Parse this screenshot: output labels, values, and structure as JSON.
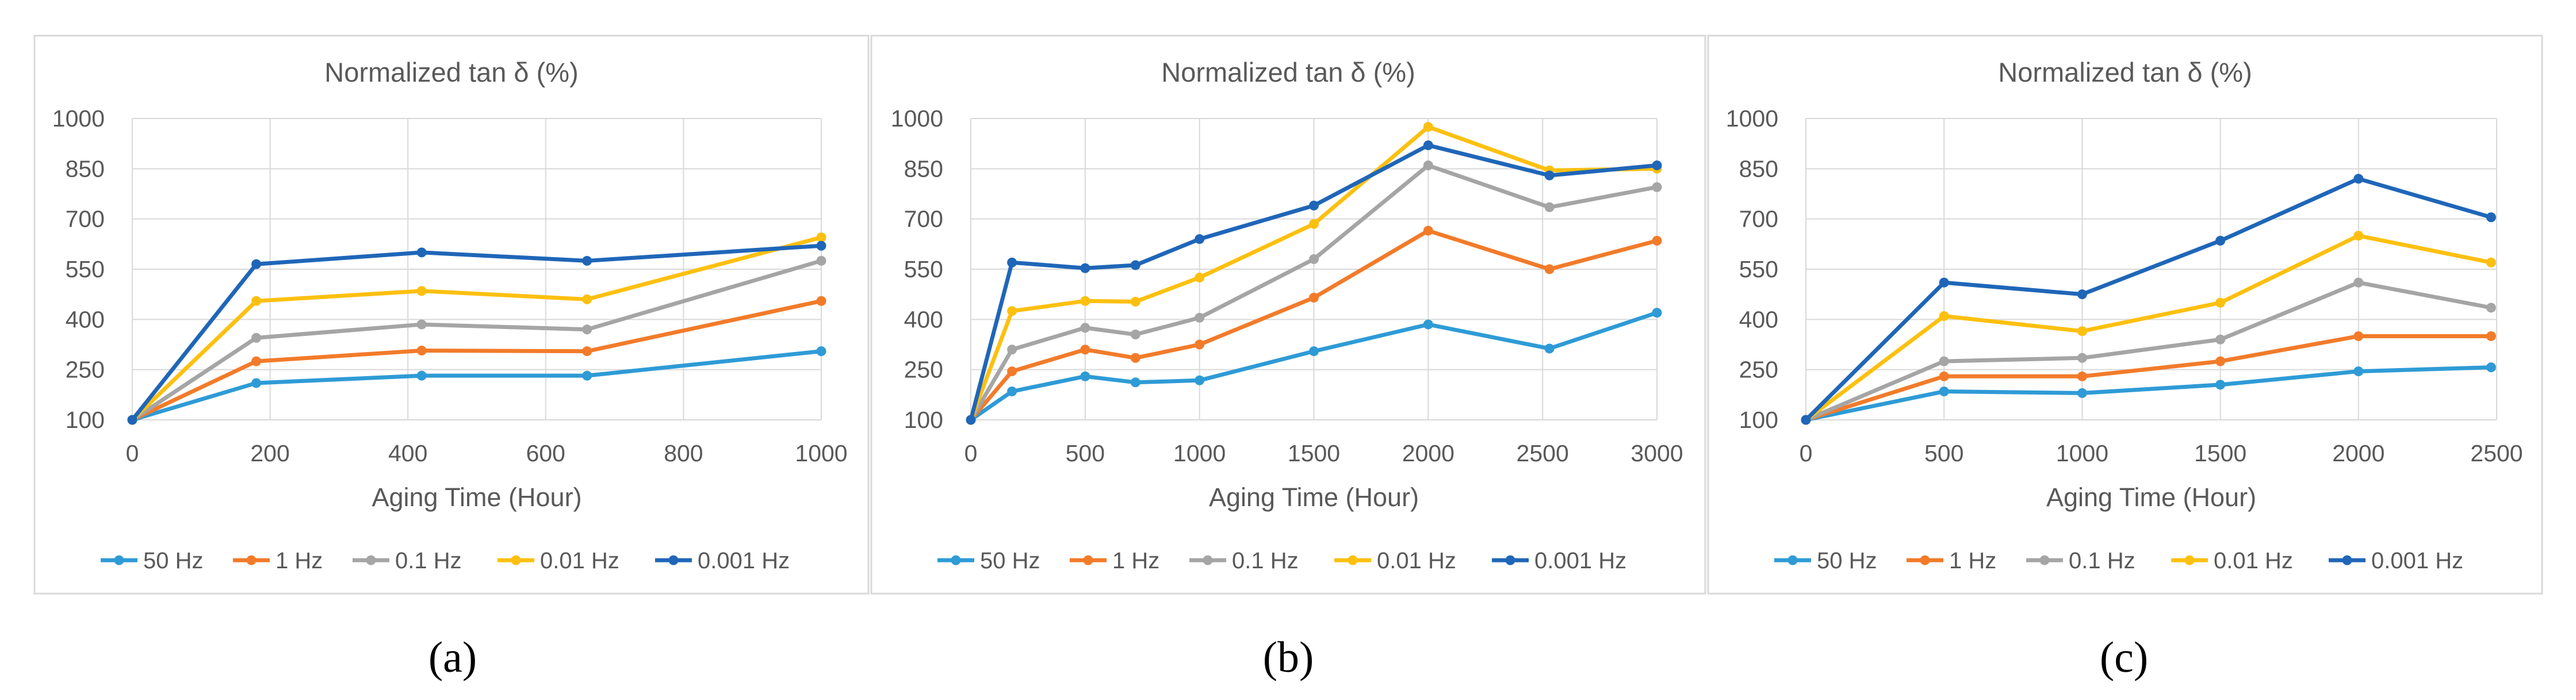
{
  "colors": {
    "series": [
      "#2e9bd6",
      "#f27b2a",
      "#a5a5a5",
      "#fdc010",
      "#1f66b8"
    ],
    "grid": "#d9d9d9",
    "text": "#595959",
    "frame": "#d9d9d9"
  },
  "panel_labels": [
    "(a)",
    "(b)",
    "(c)"
  ],
  "chart_data": [
    {
      "type": "line",
      "title": "Normalized tan δ (%)",
      "xlabel": "Aging Time (Hour)",
      "ylabel": "",
      "xlim": [
        0,
        1000
      ],
      "ylim": [
        100,
        1000
      ],
      "xticks": [
        "0",
        "200",
        "400",
        "600",
        "800",
        "1000"
      ],
      "yticks": [
        "100",
        "250",
        "400",
        "550",
        "700",
        "850",
        "1000"
      ],
      "grid": true,
      "legend": "bottom",
      "x": [
        0,
        180,
        420,
        660,
        1000
      ],
      "series": [
        {
          "name": "50 Hz",
          "values": [
            100,
            210,
            232,
            232,
            305
          ]
        },
        {
          "name": "1 Hz",
          "values": [
            100,
            275,
            307,
            305,
            455
          ]
        },
        {
          "name": "0.1 Hz",
          "values": [
            100,
            345,
            385,
            370,
            575
          ]
        },
        {
          "name": "0.01 Hz",
          "values": [
            100,
            455,
            485,
            460,
            645
          ]
        },
        {
          "name": "0.001 Hz",
          "values": [
            100,
            565,
            600,
            575,
            620
          ]
        }
      ]
    },
    {
      "type": "line",
      "title": "Normalized tan δ (%)",
      "xlabel": "Aging Time (Hour)",
      "ylabel": "",
      "xlim": [
        0,
        3000
      ],
      "ylim": [
        100,
        1000
      ],
      "xticks": [
        "0",
        "500",
        "1000",
        "1500",
        "2000",
        "2500",
        "3000"
      ],
      "yticks": [
        "100",
        "250",
        "400",
        "550",
        "700",
        "850",
        "1000"
      ],
      "grid": true,
      "legend": "bottom",
      "x": [
        0,
        180,
        500,
        720,
        1000,
        1500,
        2000,
        2530,
        3000
      ],
      "series": [
        {
          "name": "50 Hz",
          "values": [
            100,
            185,
            230,
            212,
            218,
            305,
            385,
            313,
            420
          ]
        },
        {
          "name": "1 Hz",
          "values": [
            100,
            245,
            310,
            285,
            325,
            465,
            665,
            550,
            635
          ]
        },
        {
          "name": "0.1 Hz",
          "values": [
            100,
            310,
            375,
            355,
            405,
            580,
            860,
            735,
            795
          ]
        },
        {
          "name": "0.01 Hz",
          "values": [
            100,
            425,
            455,
            453,
            525,
            685,
            975,
            845,
            850
          ]
        },
        {
          "name": "0.001 Hz",
          "values": [
            100,
            570,
            553,
            562,
            640,
            740,
            920,
            830,
            860
          ]
        }
      ]
    },
    {
      "type": "line",
      "title": "Normalized tan δ (%)",
      "xlabel": "Aging Time (Hour)",
      "ylabel": "",
      "xlim": [
        0,
        2500
      ],
      "ylim": [
        100,
        1000
      ],
      "xticks": [
        "0",
        "500",
        "1000",
        "1500",
        "2000",
        "2500"
      ],
      "yticks": [
        "100",
        "250",
        "400",
        "550",
        "700",
        "850",
        "1000"
      ],
      "grid": true,
      "legend": "bottom",
      "x": [
        0,
        500,
        1000,
        1500,
        2000,
        2480
      ],
      "series": [
        {
          "name": "50 Hz",
          "values": [
            100,
            185,
            180,
            205,
            245,
            257
          ]
        },
        {
          "name": "1 Hz",
          "values": [
            100,
            230,
            230,
            275,
            350,
            350
          ]
        },
        {
          "name": "0.1 Hz",
          "values": [
            100,
            275,
            285,
            340,
            510,
            435
          ]
        },
        {
          "name": "0.01 Hz",
          "values": [
            100,
            410,
            365,
            450,
            650,
            570
          ]
        },
        {
          "name": "0.001 Hz",
          "values": [
            100,
            510,
            475,
            635,
            820,
            705
          ]
        }
      ]
    }
  ]
}
